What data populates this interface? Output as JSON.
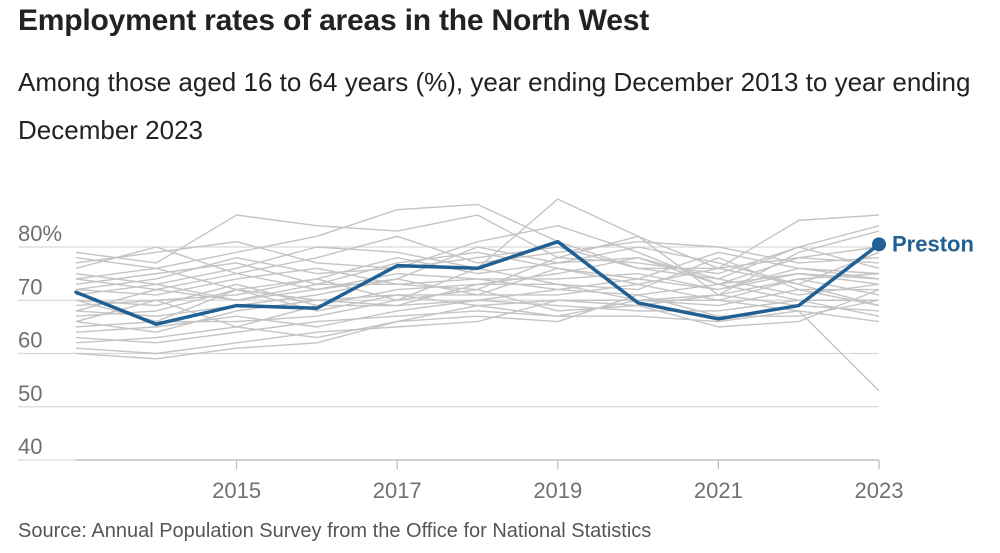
{
  "title": "Employment rates of areas in the North West",
  "subtitle": "Among those aged 16 to 64 years (%), year ending December 2013 to year ending December 2023",
  "source": "Source: Annual Population Survey from the Office for National Statistics",
  "colors": {
    "highlight": "#206095",
    "background_series": "#c4c4c4",
    "grid": "#d9d9d9",
    "axis": "#bbbbbb",
    "tick_text": "#707070"
  },
  "chart_data": {
    "type": "line",
    "x": [
      2013,
      2014,
      2015,
      2016,
      2017,
      2018,
      2019,
      2020,
      2021,
      2022,
      2023
    ],
    "xticks": [
      2015,
      2017,
      2019,
      2021,
      2023
    ],
    "xtick_labels": [
      "2015",
      "2017",
      "2019",
      "2021",
      "2023"
    ],
    "ylim": [
      40,
      80
    ],
    "yticks": [
      40,
      50,
      60,
      70,
      80
    ],
    "ytick_labels": [
      "40",
      "50",
      "60",
      "70",
      "80%"
    ],
    "grid": true,
    "highlight_series": {
      "name": "Preston",
      "values": [
        71.5,
        65.5,
        69,
        68.5,
        76.5,
        76,
        81,
        69.5,
        66.5,
        69,
        80.5
      ]
    },
    "background_series": [
      [
        79,
        77,
        86,
        84,
        83,
        86,
        78,
        82,
        76,
        85,
        86
      ],
      [
        78,
        76,
        79,
        82,
        87,
        88,
        81,
        76,
        74,
        80,
        84
      ],
      [
        77,
        79,
        81,
        77,
        76,
        81,
        84,
        79,
        73,
        78,
        80
      ],
      [
        75,
        73,
        76,
        80,
        79,
        76,
        89,
        82,
        71,
        79,
        83
      ],
      [
        74,
        76,
        72,
        74,
        78,
        75,
        77,
        80,
        77,
        73,
        79
      ],
      [
        73,
        75,
        77,
        73,
        77,
        79,
        76,
        74,
        79,
        76,
        75
      ],
      [
        72,
        71,
        74,
        76,
        73,
        72,
        78,
        77,
        75,
        80,
        76
      ],
      [
        71,
        73,
        70,
        72,
        75,
        74,
        74,
        75,
        72,
        75,
        74
      ],
      [
        70,
        69,
        73,
        69,
        72,
        73,
        75,
        78,
        74,
        71,
        73
      ],
      [
        69,
        70,
        71,
        74,
        70,
        76,
        73,
        72,
        78,
        72,
        72
      ],
      [
        68,
        67,
        69,
        71,
        74,
        71,
        71,
        73,
        70,
        74,
        71
      ],
      [
        67,
        68,
        72,
        70,
        69,
        70,
        72,
        71,
        73,
        70,
        70
      ],
      [
        66,
        64,
        68,
        70,
        71,
        69,
        70,
        70,
        69,
        72,
        69
      ],
      [
        65,
        66,
        66,
        67,
        70,
        72,
        68,
        69,
        71,
        69,
        68
      ],
      [
        64,
        65,
        67,
        65,
        68,
        70,
        69,
        68,
        68,
        70,
        67
      ],
      [
        63,
        62,
        64,
        66,
        67,
        68,
        67,
        67,
        66,
        68,
        66
      ],
      [
        62,
        63,
        65,
        63,
        66,
        67,
        66,
        71,
        67,
        67,
        70
      ],
      [
        61,
        60,
        62,
        64,
        65,
        66,
        70,
        69,
        65,
        66,
        72
      ],
      [
        60,
        59,
        61,
        62,
        66,
        69,
        67,
        70,
        70,
        68,
        53
      ],
      [
        76,
        80,
        75,
        78,
        82,
        77,
        79,
        81,
        80,
        77,
        78
      ],
      [
        72,
        74,
        78,
        75,
        76,
        78,
        80,
        76,
        76,
        78,
        77
      ],
      [
        68,
        72,
        70,
        73,
        73,
        74,
        72,
        74,
        72,
        76,
        74
      ],
      [
        70,
        66,
        72,
        68,
        71,
        71,
        76,
        73,
        76,
        73,
        69
      ],
      [
        66,
        70,
        65,
        69,
        69,
        73,
        73,
        70,
        71,
        74,
        75
      ],
      [
        74,
        72,
        75,
        72,
        74,
        80,
        77,
        78,
        73,
        75,
        73
      ]
    ]
  }
}
